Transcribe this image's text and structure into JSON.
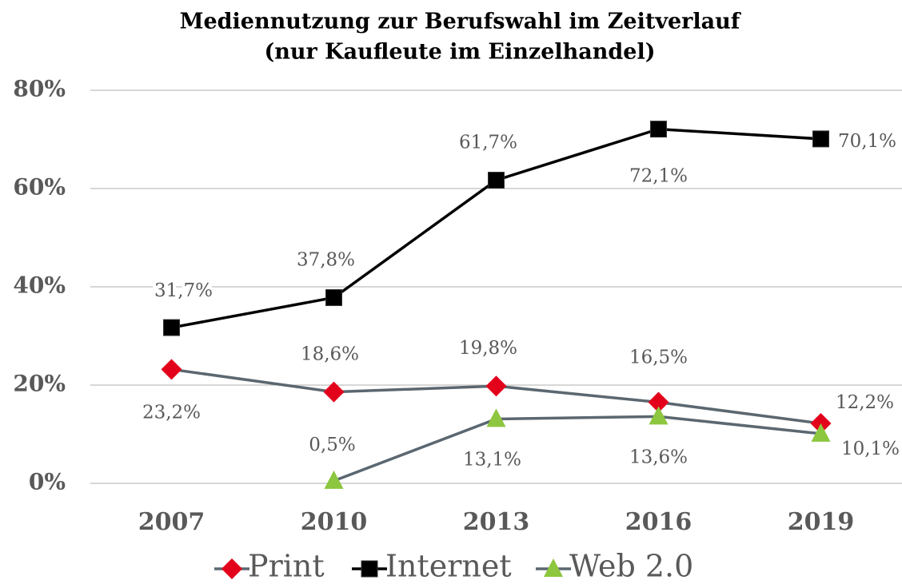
{
  "chart_data": {
    "type": "line",
    "title": "Mediennutzung zur Berufswahl im Zeitverlauf",
    "subtitle": "(nur Kaufleute im Einzelhandel)",
    "categories": [
      "2007",
      "2010",
      "2013",
      "2016",
      "2019"
    ],
    "series": [
      {
        "name": "Print",
        "color": "#e3001b",
        "line_color": "#5b6770",
        "marker": "diamond",
        "values": [
          23.2,
          18.6,
          19.8,
          16.5,
          12.2
        ],
        "value_labels": [
          "23,2%",
          "18,6%",
          "19,8%",
          "16,5%",
          "12,2%"
        ]
      },
      {
        "name": "Internet",
        "color": "#000000",
        "line_color": "#000000",
        "marker": "square",
        "values": [
          31.7,
          37.8,
          61.7,
          72.1,
          70.1
        ],
        "value_labels": [
          "31,7%",
          "37,8%",
          "61,7%",
          "72,1%",
          "70,1%"
        ]
      },
      {
        "name": "Web 2.0",
        "color": "#8dc63f",
        "line_color": "#5b6770",
        "marker": "triangle",
        "values": [
          null,
          0.5,
          13.1,
          13.6,
          10.1
        ],
        "value_labels": [
          null,
          "0,5%",
          "13,1%",
          "13,6%",
          "10,1%"
        ]
      }
    ],
    "ylim": [
      0,
      80
    ],
    "yticks": [
      {
        "value": 0,
        "label": "0%"
      },
      {
        "value": 20,
        "label": "20%"
      },
      {
        "value": 40,
        "label": "40%"
      },
      {
        "value": 60,
        "label": "60%"
      },
      {
        "value": 80,
        "label": "80%"
      }
    ],
    "grid": true,
    "legend": "bottom"
  }
}
